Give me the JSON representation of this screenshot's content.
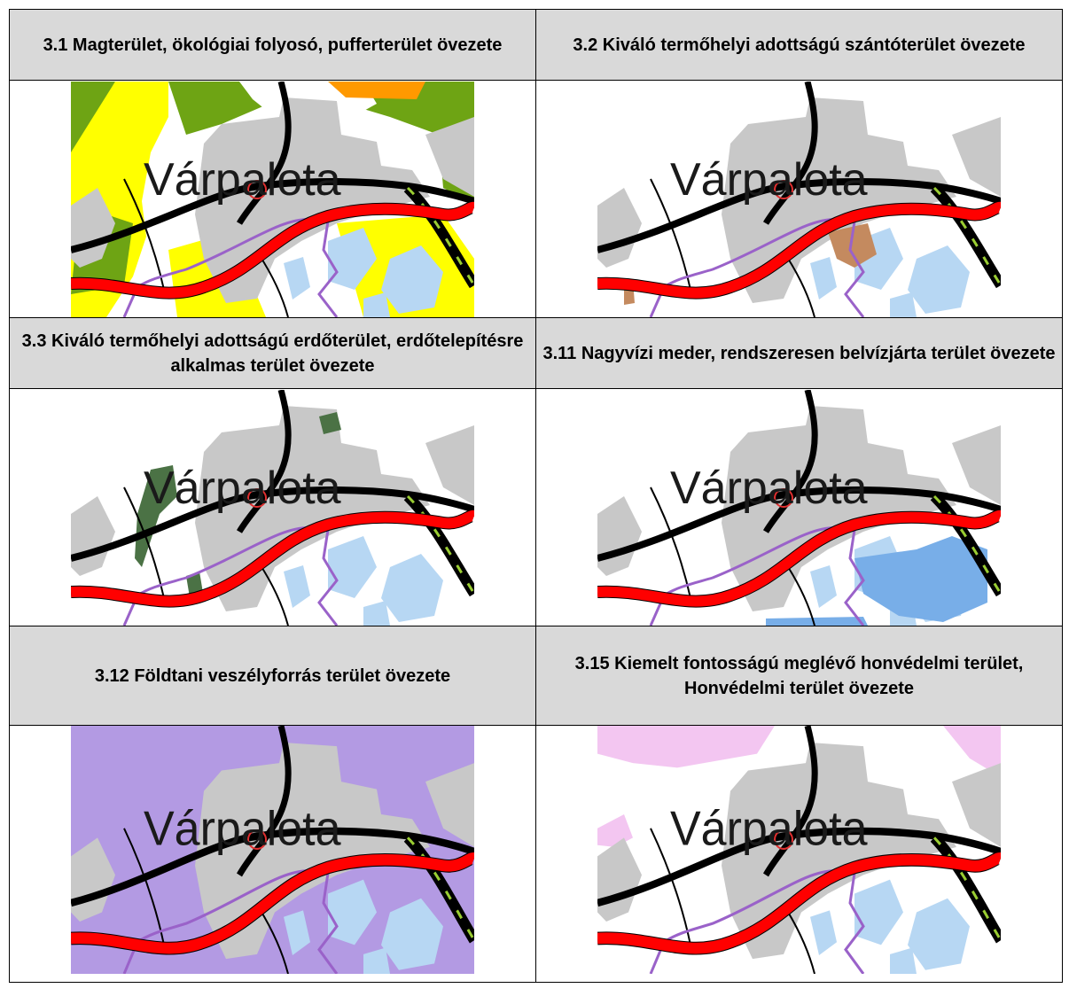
{
  "panels": [
    {
      "title": "3.1 Magterület, ökológiai folyosó, pufferterület övezete",
      "town_label": "Várpalota"
    },
    {
      "title": "3.2 Kiváló termőhelyi adottságú szántóterület övezete",
      "town_label": "Várpalota"
    },
    {
      "title": "3.3 Kiváló termőhelyi adottságú erdőterület, erdőtelepítésre alkalmas terület övezete",
      "town_label": "Várpalota"
    },
    {
      "title": "3.11 Nagyvízi meder, rendszeresen belvízjárta terület övezete",
      "town_label": "Várpalota"
    },
    {
      "title": "3.12 Földtani veszélyforrás terület övezete",
      "town_label": "Várpalota"
    },
    {
      "title": "3.15 Kiemelt fontosságú meglévő honvédelmi terület, Honvédelmi terület övezete",
      "town_label": "Várpalota"
    }
  ],
  "colors": {
    "header_bg": "#d9d9d9",
    "urban_gray": "#c8c8c8",
    "road_black": "#000000",
    "motorway_red": "#ff0000",
    "water_lightblue": "#b7d7f3",
    "bike_route_purple": "#9a62c9",
    "core_area_green": "#6ea414",
    "buffer_yellow": "#ffff00",
    "arable_brown": "#c48a5f",
    "forest_darkgreen": "#4b7245",
    "floodplain_blue": "#78aee8",
    "geohazard_violet": "#b39ae3",
    "military_pink": "#f3c6f1"
  }
}
